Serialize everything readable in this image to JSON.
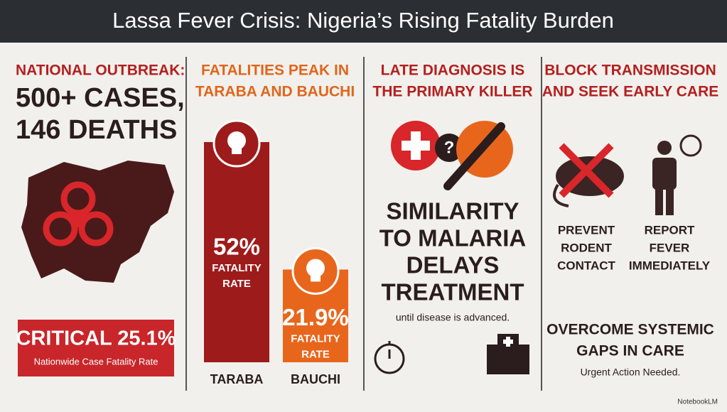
{
  "header": {
    "title": "Lassa Fever Crisis: Nigeria’s Rising Fatality Burden"
  },
  "panels": [
    {
      "heading": [
        "NATIONAL OUTBREAK:"
      ],
      "headline": [
        "500+ CASES,",
        "146 DEATHS"
      ],
      "callout": {
        "title": "CRITICAL 25.1%",
        "subtitle": "Nationwide Case Fatality Rate"
      }
    },
    {
      "heading": [
        "FATALITIES PEAK IN",
        "TARABA AND BAUCHI"
      ],
      "bars": {
        "categories": [
          "TARABA",
          "BAUCHI"
        ],
        "values": [
          52,
          21.9
        ],
        "value_labels": [
          "52%",
          "21.9%"
        ],
        "colors": [
          "#9e1b1b",
          "#e8661c"
        ],
        "caption": [
          "FATALITY",
          "RATE"
        ]
      }
    },
    {
      "heading": [
        "LATE DIAGNOSIS IS",
        "THE PRIMARY KILLER"
      ],
      "headline": [
        "SIMILARITY",
        "TO MALARIA",
        "DELAYS",
        "TREATMENT"
      ],
      "note": "until disease is advanced."
    },
    {
      "heading": [
        "BLOCK TRANSMISSION",
        "AND SEEK EARLY CARE"
      ],
      "actions": [
        [
          "PREVENT",
          "RODENT",
          "CONTACT"
        ],
        [
          "REPORT",
          "FEVER",
          "IMMEDIATELY"
        ]
      ],
      "headline": [
        "OVERCOME SYSTEMIC",
        "GAPS IN CARE"
      ],
      "note": "Urgent Action Needed."
    }
  ],
  "footer": {
    "credit": "NotebookLM"
  }
}
